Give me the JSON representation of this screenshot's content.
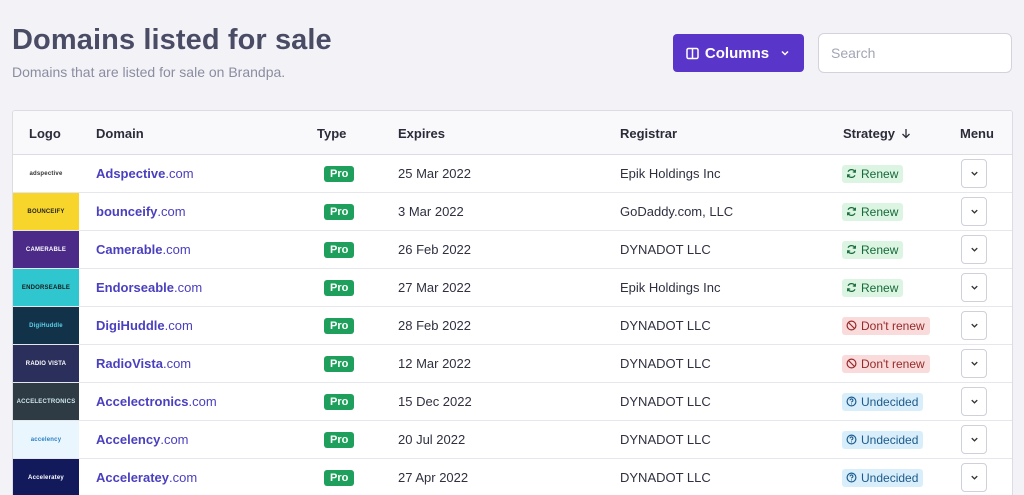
{
  "header": {
    "title": "Domains listed for sale",
    "subtitle": "Domains that are listed for sale on Brandpa.",
    "columns_label": "Columns",
    "search_placeholder": "Search"
  },
  "table": {
    "headers": {
      "logo": "Logo",
      "domain": "Domain",
      "type": "Type",
      "expires": "Expires",
      "registrar": "Registrar",
      "strategy": "Strategy",
      "menu": "Menu"
    },
    "rows": [
      {
        "logo_text": "adspective",
        "logo_bg": "#ffffff",
        "logo_fg": "#333333",
        "name": "Adspective",
        "tld": ".com",
        "type": "Pro",
        "expires": "25 Mar 2022",
        "registrar": "Epik Holdings Inc",
        "strategy": "Renew",
        "strategy_kind": "renew"
      },
      {
        "logo_text": "BOUNCEIFY",
        "logo_bg": "#f7d52a",
        "logo_fg": "#222222",
        "name": "bounceify",
        "tld": ".com",
        "type": "Pro",
        "expires": "3 Mar 2022",
        "registrar": "GoDaddy.com, LLC",
        "strategy": "Renew",
        "strategy_kind": "renew"
      },
      {
        "logo_text": "CAMERABLE",
        "logo_bg": "#4b2a88",
        "logo_fg": "#ffffff",
        "name": "Camerable",
        "tld": ".com",
        "type": "Pro",
        "expires": "26 Feb 2022",
        "registrar": "DYNADOT LLC",
        "strategy": "Renew",
        "strategy_kind": "renew"
      },
      {
        "logo_text": "ENDORSEABLE",
        "logo_bg": "#2fc6cf",
        "logo_fg": "#1a1a1a",
        "name": "Endorseable",
        "tld": ".com",
        "type": "Pro",
        "expires": "27 Mar 2022",
        "registrar": "Epik Holdings Inc",
        "strategy": "Renew",
        "strategy_kind": "renew"
      },
      {
        "logo_text": "DigiHuddle",
        "logo_bg": "#12324a",
        "logo_fg": "#5ad0e8",
        "name": "DigiHuddle",
        "tld": ".com",
        "type": "Pro",
        "expires": "28 Feb 2022",
        "registrar": "DYNADOT LLC",
        "strategy": "Don't renew",
        "strategy_kind": "dont"
      },
      {
        "logo_text": "RADIO VISTA",
        "logo_bg": "#2b2f5c",
        "logo_fg": "#ffffff",
        "name": "RadioVista",
        "tld": ".com",
        "type": "Pro",
        "expires": "12 Mar 2022",
        "registrar": "DYNADOT LLC",
        "strategy": "Don't renew",
        "strategy_kind": "dont"
      },
      {
        "logo_text": "ACCELECTRONICS",
        "logo_bg": "#2e3a44",
        "logo_fg": "#cfe7ee",
        "name": "Accelectronics",
        "tld": ".com",
        "type": "Pro",
        "expires": "15 Dec 2022",
        "registrar": "DYNADOT LLC",
        "strategy": "Undecided",
        "strategy_kind": "undecided"
      },
      {
        "logo_text": "accelency",
        "logo_bg": "#e9f6fd",
        "logo_fg": "#2a7fc4",
        "name": "Accelency",
        "tld": ".com",
        "type": "Pro",
        "expires": "20 Jul 2022",
        "registrar": "DYNADOT LLC",
        "strategy": "Undecided",
        "strategy_kind": "undecided"
      },
      {
        "logo_text": "Acceleratey",
        "logo_bg": "#121a5c",
        "logo_fg": "#ffffff",
        "name": "Acceleratey",
        "tld": ".com",
        "type": "Pro",
        "expires": "27 Apr 2022",
        "registrar": "DYNADOT LLC",
        "strategy": "Undecided",
        "strategy_kind": "undecided"
      }
    ]
  },
  "icons": {
    "columns": "columns-icon",
    "chevron": "chevron-down-icon",
    "sort": "arrow-down-icon",
    "renew": "refresh-icon",
    "dont": "ban-icon",
    "undecided": "question-circle-icon"
  },
  "colors": {
    "accent": "#5a35c9",
    "pro": "#1f9f5c",
    "link": "#4a3fbf"
  }
}
